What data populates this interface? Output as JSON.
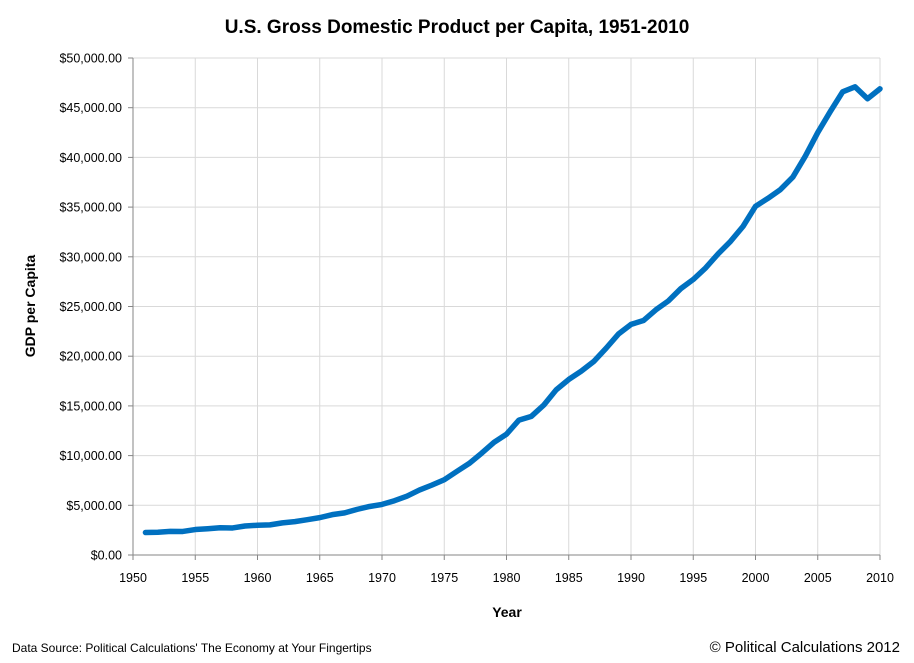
{
  "chart_data": {
    "type": "line",
    "title": "U.S. Gross Domestic Product per Capita, 1951-2010",
    "xlabel": "Year",
    "ylabel": "GDP per Capita",
    "xlim": [
      1950,
      2010
    ],
    "ylim": [
      0,
      50000
    ],
    "x_ticks": [
      "1950",
      "1955",
      "1960",
      "1965",
      "1970",
      "1975",
      "1980",
      "1985",
      "1990",
      "1995",
      "2000",
      "2005",
      "2010"
    ],
    "y_ticks": [
      "$0.00",
      "$5,000.00",
      "$10,000.00",
      "$15,000.00",
      "$20,000.00",
      "$25,000.00",
      "$30,000.00",
      "$35,000.00",
      "$40,000.00",
      "$45,000.00",
      "$50,000.00"
    ],
    "grid": true,
    "legend": "none",
    "series": [
      {
        "name": "GDP per Capita",
        "color": "#0070C0",
        "x": [
          1951,
          1952,
          1953,
          1954,
          1955,
          1956,
          1957,
          1958,
          1959,
          1960,
          1961,
          1962,
          1963,
          1964,
          1965,
          1966,
          1967,
          1968,
          1969,
          1970,
          1971,
          1972,
          1973,
          1974,
          1975,
          1976,
          1977,
          1978,
          1979,
          1980,
          1981,
          1982,
          1983,
          1984,
          1985,
          1986,
          1987,
          1988,
          1989,
          1990,
          1991,
          1992,
          1993,
          1994,
          1995,
          1996,
          1997,
          1998,
          1999,
          2000,
          2001,
          2002,
          2003,
          2004,
          2005,
          2006,
          2007,
          2008,
          2009,
          2010
        ],
        "values": [
          2260,
          2290,
          2380,
          2370,
          2560,
          2640,
          2740,
          2720,
          2920,
          2990,
          3030,
          3230,
          3360,
          3550,
          3760,
          4060,
          4240,
          4590,
          4880,
          5090,
          5460,
          5920,
          6530,
          7030,
          7570,
          8400,
          9210,
          10240,
          11340,
          12150,
          13570,
          13950,
          15090,
          16630,
          17660,
          18490,
          19460,
          20800,
          22240,
          23200,
          23590,
          24670,
          25560,
          26800,
          27720,
          28890,
          30300,
          31560,
          33060,
          35080,
          35880,
          36760,
          38020,
          40120,
          42500,
          44600,
          46600,
          47100,
          45900,
          46900
        ]
      }
    ]
  },
  "footer": {
    "source": "Data Source: Political Calculations' The Economy at Your Fingertips",
    "copyright": "© Political Calculations 2012"
  }
}
